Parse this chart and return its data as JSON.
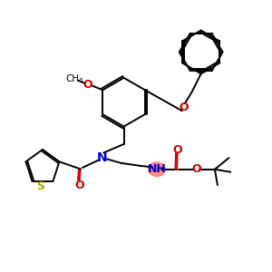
{
  "bg_color": "#ffffff",
  "bond_color": "#000000",
  "nitrogen_color": "#0000cc",
  "oxygen_color": "#cc0000",
  "sulfur_color": "#aaaa00",
  "nh_highlight_color": "#ff7777",
  "lw": 1.4,
  "figsize": [
    3.0,
    3.0
  ],
  "dpi": 100,
  "xlim": [
    0,
    10
  ],
  "ylim": [
    0,
    10
  ]
}
